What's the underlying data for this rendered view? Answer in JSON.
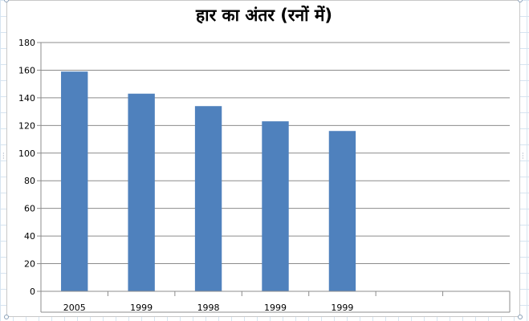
{
  "chart_data": {
    "type": "bar",
    "title": "हार का अंतर (रनों में)",
    "xlabel": "",
    "ylabel": "",
    "categories": [
      "2005",
      "1999",
      "1998",
      "1999",
      "1999",
      "",
      ""
    ],
    "values": [
      159,
      143,
      134,
      123,
      116,
      null,
      null
    ],
    "ylim": [
      0,
      180
    ],
    "yticks": [
      0,
      20,
      40,
      60,
      80,
      100,
      120,
      140,
      160,
      180
    ],
    "grid": true,
    "legend": "none",
    "bar_color": "#4f81bd",
    "gridline_color": "#8c8c8c"
  }
}
